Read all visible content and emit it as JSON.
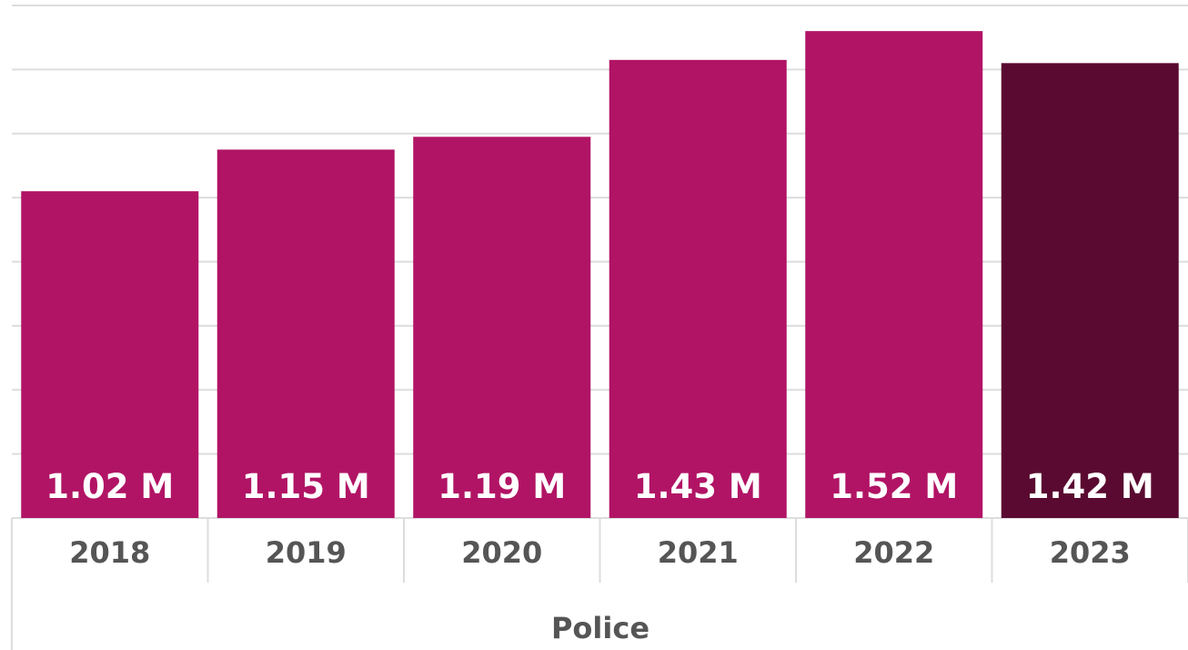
{
  "chart_data": {
    "type": "bar",
    "categories": [
      "2018",
      "2019",
      "2020",
      "2021",
      "2022",
      "2023"
    ],
    "values": [
      1.02,
      1.15,
      1.19,
      1.43,
      1.52,
      1.42
    ],
    "value_labels": [
      "1.02 M",
      "1.15 M",
      "1.19 M",
      "1.43 M",
      "1.52 M",
      "1.42 M"
    ],
    "group_label": "Police",
    "ylim": [
      0,
      1.6
    ],
    "grid": true,
    "colors": {
      "bar": "#b11465",
      "bar_highlight": "#5a0a31",
      "grid": "#dddddd",
      "axis_text": "#555555"
    },
    "highlight_index": 5
  }
}
